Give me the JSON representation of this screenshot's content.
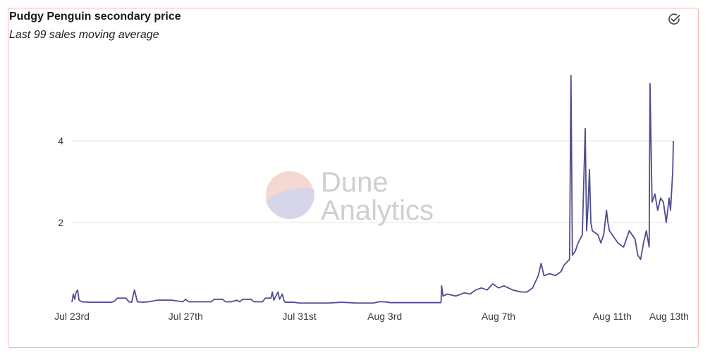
{
  "chart_data": {
    "type": "line",
    "title": "Pudgy Penguin secondary price",
    "subtitle": "Last 99 sales moving average",
    "xlabel": "",
    "ylabel": "",
    "x_ticks": [
      "Jul 23rd",
      "Jul 27th",
      "Jul 31st",
      "Aug 3rd",
      "Aug 7th",
      "Aug 11th",
      "Aug 13th"
    ],
    "x_tick_days": [
      0,
      4,
      8,
      11,
      15,
      19,
      21
    ],
    "y_ticks": [
      "2",
      "4"
    ],
    "y_tick_values": [
      2,
      4
    ],
    "ylim": [
      0,
      6
    ],
    "xlim_days": [
      0,
      21.15
    ],
    "grid": "horizontal",
    "legend": "none",
    "series_color": "#4e4d8f",
    "series": [
      {
        "points": [
          [
            0.0,
            0.05
          ],
          [
            0.05,
            0.25
          ],
          [
            0.1,
            0.12
          ],
          [
            0.15,
            0.3
          ],
          [
            0.2,
            0.35
          ],
          [
            0.25,
            0.1
          ],
          [
            0.35,
            0.06
          ],
          [
            0.6,
            0.05
          ],
          [
            1.0,
            0.05
          ],
          [
            1.4,
            0.05
          ],
          [
            1.5,
            0.08
          ],
          [
            1.6,
            0.15
          ],
          [
            1.9,
            0.15
          ],
          [
            2.0,
            0.06
          ],
          [
            2.1,
            0.05
          ],
          [
            2.2,
            0.35
          ],
          [
            2.3,
            0.06
          ],
          [
            2.5,
            0.05
          ],
          [
            2.7,
            0.06
          ],
          [
            3.0,
            0.1
          ],
          [
            3.5,
            0.1
          ],
          [
            3.9,
            0.06
          ],
          [
            4.0,
            0.12
          ],
          [
            4.1,
            0.06
          ],
          [
            4.5,
            0.06
          ],
          [
            4.9,
            0.06
          ],
          [
            5.0,
            0.12
          ],
          [
            5.3,
            0.12
          ],
          [
            5.4,
            0.06
          ],
          [
            5.6,
            0.06
          ],
          [
            5.8,
            0.1
          ],
          [
            5.9,
            0.06
          ],
          [
            6.0,
            0.12
          ],
          [
            6.3,
            0.12
          ],
          [
            6.4,
            0.06
          ],
          [
            6.7,
            0.06
          ],
          [
            6.8,
            0.15
          ],
          [
            7.0,
            0.15
          ],
          [
            7.05,
            0.3
          ],
          [
            7.1,
            0.1
          ],
          [
            7.25,
            0.3
          ],
          [
            7.3,
            0.12
          ],
          [
            7.4,
            0.25
          ],
          [
            7.45,
            0.1
          ],
          [
            7.5,
            0.05
          ],
          [
            7.8,
            0.05
          ],
          [
            8.0,
            0.03
          ],
          [
            9.0,
            0.03
          ],
          [
            9.5,
            0.05
          ],
          [
            10.0,
            0.03
          ],
          [
            10.6,
            0.03
          ],
          [
            10.8,
            0.06
          ],
          [
            11.0,
            0.06
          ],
          [
            11.2,
            0.04
          ],
          [
            12.0,
            0.04
          ],
          [
            12.5,
            0.04
          ],
          [
            12.98,
            0.04
          ],
          [
            13.0,
            0.45
          ],
          [
            13.05,
            0.2
          ],
          [
            13.2,
            0.25
          ],
          [
            13.5,
            0.2
          ],
          [
            13.8,
            0.28
          ],
          [
            14.0,
            0.25
          ],
          [
            14.2,
            0.35
          ],
          [
            14.4,
            0.4
          ],
          [
            14.6,
            0.35
          ],
          [
            14.8,
            0.5
          ],
          [
            15.0,
            0.4
          ],
          [
            15.2,
            0.45
          ],
          [
            15.5,
            0.35
          ],
          [
            15.8,
            0.3
          ],
          [
            16.0,
            0.3
          ],
          [
            16.2,
            0.4
          ],
          [
            16.4,
            0.7
          ],
          [
            16.5,
            1.0
          ],
          [
            16.6,
            0.7
          ],
          [
            16.8,
            0.75
          ],
          [
            17.0,
            0.7
          ],
          [
            17.2,
            0.8
          ],
          [
            17.3,
            0.95
          ],
          [
            17.5,
            1.1
          ],
          [
            17.55,
            5.6
          ],
          [
            17.6,
            1.2
          ],
          [
            17.7,
            1.3
          ],
          [
            17.8,
            1.5
          ],
          [
            17.95,
            1.7
          ],
          [
            18.05,
            4.3
          ],
          [
            18.1,
            1.8
          ],
          [
            18.15,
            2.4
          ],
          [
            18.2,
            3.3
          ],
          [
            18.25,
            2.0
          ],
          [
            18.3,
            1.8
          ],
          [
            18.5,
            1.7
          ],
          [
            18.6,
            1.5
          ],
          [
            18.7,
            1.7
          ],
          [
            18.8,
            2.3
          ],
          [
            18.85,
            2.0
          ],
          [
            18.9,
            1.8
          ],
          [
            19.0,
            1.7
          ],
          [
            19.2,
            1.5
          ],
          [
            19.4,
            1.4
          ],
          [
            19.6,
            1.8
          ],
          [
            19.8,
            1.6
          ],
          [
            19.9,
            1.2
          ],
          [
            20.0,
            1.1
          ],
          [
            20.1,
            1.5
          ],
          [
            20.2,
            1.8
          ],
          [
            20.3,
            1.4
          ],
          [
            20.33,
            5.4
          ],
          [
            20.4,
            2.5
          ],
          [
            20.5,
            2.7
          ],
          [
            20.6,
            2.3
          ],
          [
            20.7,
            2.6
          ],
          [
            20.8,
            2.5
          ],
          [
            20.9,
            2.0
          ],
          [
            21.0,
            2.6
          ],
          [
            21.05,
            2.3
          ],
          [
            21.1,
            2.9
          ],
          [
            21.13,
            3.3
          ],
          [
            21.15,
            4.0
          ]
        ]
      }
    ]
  }
}
